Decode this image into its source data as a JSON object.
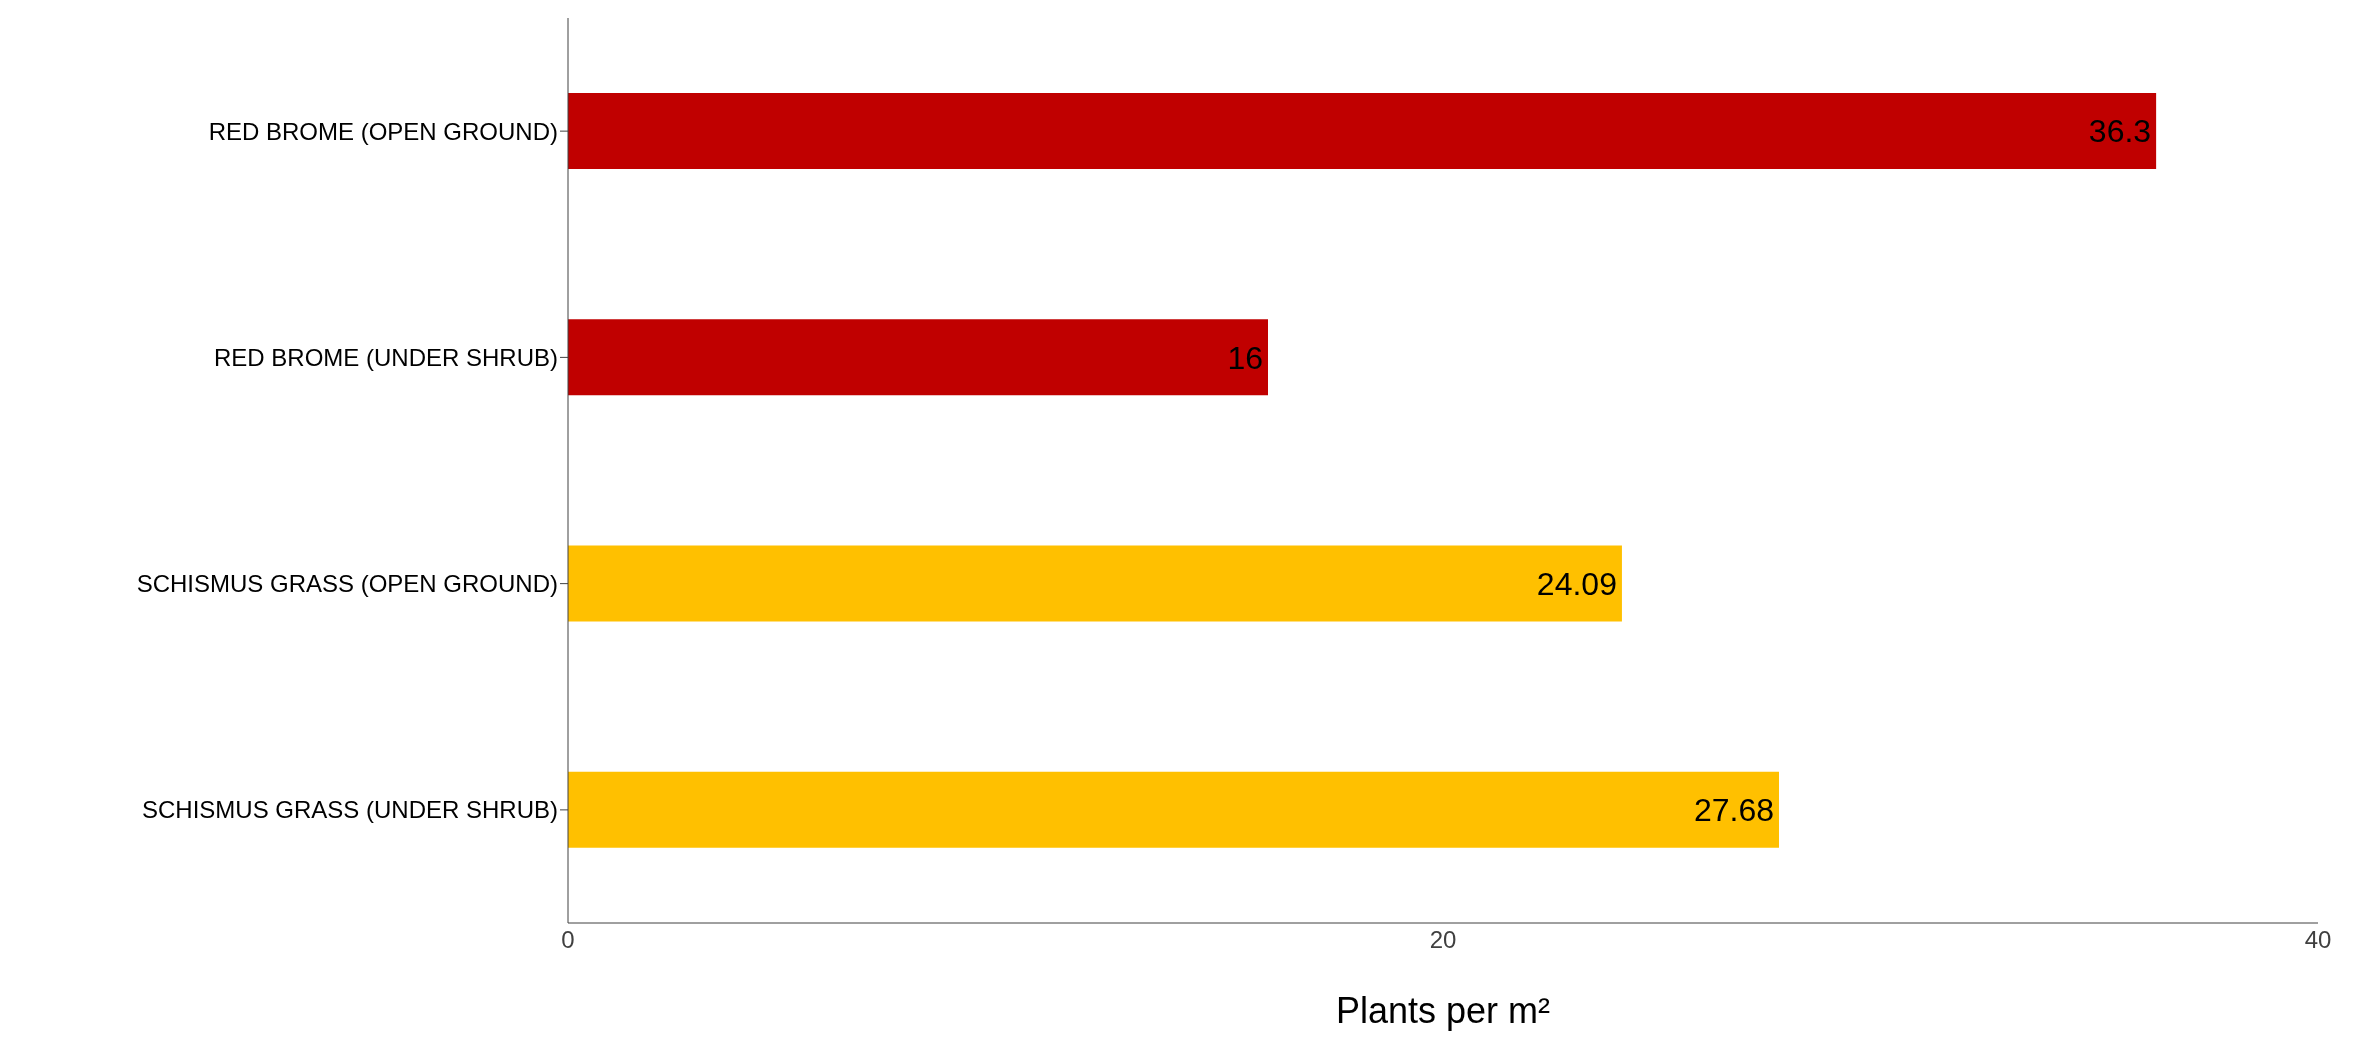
{
  "chart_data": {
    "type": "bar",
    "orientation": "horizontal",
    "xlabel": "Plants per m²",
    "categories": [
      "RED BROME (OPEN GROUND)",
      "RED BROME (UNDER SHRUB)",
      "SCHISMUS GRASS (OPEN GROUND)",
      "SCHISMUS GRASS (UNDER SHRUB)"
    ],
    "values": [
      36.3,
      16,
      24.09,
      27.68
    ],
    "colors": [
      "#c00000",
      "#c00000",
      "#ffc000",
      "#ffc000"
    ],
    "xlim": [
      0,
      40
    ],
    "xticks": [
      0,
      20,
      40
    ],
    "grid": false,
    "legend": false,
    "data_labels": true
  }
}
